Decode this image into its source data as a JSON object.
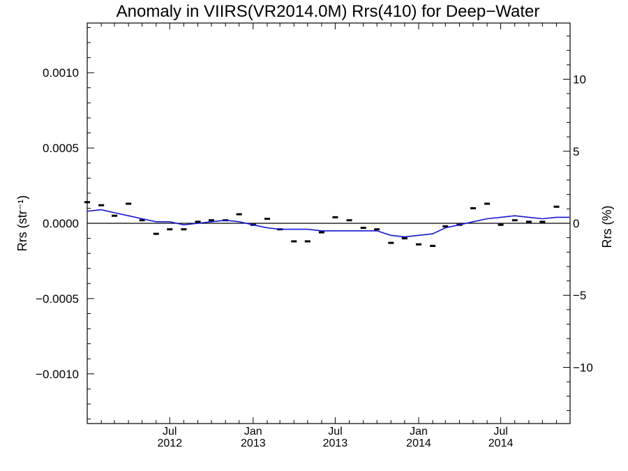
{
  "chart_data": {
    "type": "line",
    "title": "Anomaly in VIIRS(VR2014.0M) Rrs(410) for Deep−Water",
    "xlabel": "",
    "ylabel": "Rrs (str⁻¹)",
    "y2label": "Rrs (%)",
    "xlim": [
      "2012-01-01",
      "2014-12-01"
    ],
    "ylim": [
      -0.00133,
      0.00133
    ],
    "y2lim": [
      -13.9,
      13.9
    ],
    "x_ticks": [
      {
        "date": "2012-07-01",
        "line1": "Jul",
        "line2": "2012"
      },
      {
        "date": "2013-01-01",
        "line1": "Jan",
        "line2": "2013"
      },
      {
        "date": "2013-07-01",
        "line1": "Jul",
        "line2": "2013"
      },
      {
        "date": "2014-01-01",
        "line1": "Jan",
        "line2": "2014"
      },
      {
        "date": "2014-07-01",
        "line1": "Jul",
        "line2": "2014"
      }
    ],
    "y_ticks": [
      {
        "value": 0.001,
        "label": "0.0010"
      },
      {
        "value": 0.0005,
        "label": "0.0005"
      },
      {
        "value": 0.0,
        "label": "0.0000"
      },
      {
        "value": -0.0005,
        "label": "−0.0005"
      },
      {
        "value": -0.001,
        "label": "−0.0010"
      }
    ],
    "y2_ticks": [
      {
        "value": 10,
        "label": "10"
      },
      {
        "value": 5,
        "label": "5"
      },
      {
        "value": 0,
        "label": "0"
      },
      {
        "value": -5,
        "label": "−5"
      },
      {
        "value": -10,
        "label": "−10"
      }
    ],
    "reference_line": 0,
    "series": [
      {
        "mark": "dash",
        "color": "#000000",
        "x": [
          "2012-01-01",
          "2012-02-01",
          "2012-03-01",
          "2012-04-01",
          "2012-05-01",
          "2012-06-01",
          "2012-07-01",
          "2012-08-01",
          "2012-09-01",
          "2012-10-01",
          "2012-11-01",
          "2012-12-01",
          "2013-01-01",
          "2013-02-01",
          "2013-03-01",
          "2013-04-01",
          "2013-05-01",
          "2013-06-01",
          "2013-07-01",
          "2013-08-01",
          "2013-09-01",
          "2013-10-01",
          "2013-11-01",
          "2013-12-01",
          "2014-01-01",
          "2014-02-01",
          "2014-03-01",
          "2014-04-01",
          "2014-05-01",
          "2014-06-01",
          "2014-07-01",
          "2014-08-01",
          "2014-09-01",
          "2014-10-01",
          "2014-11-01"
        ],
        "y": [
          0.00014,
          0.00012,
          5e-05,
          0.00013,
          2e-05,
          -7e-05,
          -4e-05,
          -4e-05,
          1e-05,
          2e-05,
          2e-05,
          6e-05,
          -1e-05,
          3e-05,
          -4e-05,
          -0.00012,
          -0.00012,
          -6e-05,
          4e-05,
          2e-05,
          -3e-05,
          -4e-05,
          -0.00013,
          -0.0001,
          -0.00014,
          -0.00015,
          -2e-05,
          -1e-05,
          0.0001,
          0.00013,
          -1e-05,
          2e-05,
          1e-05,
          1e-05,
          0.00011
        ]
      },
      {
        "mark": "line",
        "color": "#1414d2",
        "x": [
          "2012-01-01",
          "2012-02-01",
          "2012-03-01",
          "2012-04-01",
          "2012-05-01",
          "2012-06-01",
          "2012-07-01",
          "2012-08-01",
          "2012-09-01",
          "2012-10-01",
          "2012-11-01",
          "2012-12-01",
          "2013-01-01",
          "2013-02-01",
          "2013-03-01",
          "2013-04-01",
          "2013-05-01",
          "2013-06-01",
          "2013-07-01",
          "2013-08-01",
          "2013-09-01",
          "2013-10-01",
          "2013-11-01",
          "2013-12-01",
          "2014-01-01",
          "2014-02-01",
          "2014-03-01",
          "2014-04-01",
          "2014-05-01",
          "2014-06-01",
          "2014-07-01",
          "2014-08-01",
          "2014-09-01",
          "2014-10-01",
          "2014-11-01",
          "2014-12-01"
        ],
        "y": [
          8e-05,
          9e-05,
          7e-05,
          5e-05,
          3e-05,
          1e-05,
          1e-05,
          -1e-05,
          0.0,
          1e-05,
          2e-05,
          1e-05,
          -1e-05,
          -3e-05,
          -4e-05,
          -4e-05,
          -4e-05,
          -5e-05,
          -5e-05,
          -5e-05,
          -5e-05,
          -5e-05,
          -8e-05,
          -9e-05,
          -8e-05,
          -7e-05,
          -3e-05,
          -1e-05,
          1e-05,
          3e-05,
          4e-05,
          5e-05,
          4e-05,
          3e-05,
          4e-05,
          4e-05
        ]
      }
    ]
  }
}
